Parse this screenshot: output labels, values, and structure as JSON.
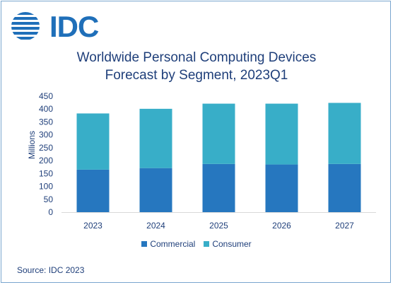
{
  "logo": {
    "text": "IDC"
  },
  "chart_data": {
    "type": "bar",
    "stacked": true,
    "title": "Worldwide Personal Computing Devices\nForecast by Segment, 2023Q1",
    "ylabel": "Millions",
    "xlabel": "",
    "categories": [
      "2023",
      "2024",
      "2025",
      "2026",
      "2027"
    ],
    "series": [
      {
        "name": "Commercial",
        "values": [
          165,
          171,
          187,
          185,
          187
        ],
        "color": "#2677bf"
      },
      {
        "name": "Consumer",
        "values": [
          218,
          230,
          234,
          236,
          237
        ],
        "color": "#38aec8"
      }
    ],
    "ylim": [
      0,
      450
    ],
    "yticks": [
      0,
      50,
      100,
      150,
      200,
      250,
      300,
      350,
      400,
      450
    ],
    "grid": false,
    "legend": "bottom"
  },
  "source": "Source: IDC 2023"
}
